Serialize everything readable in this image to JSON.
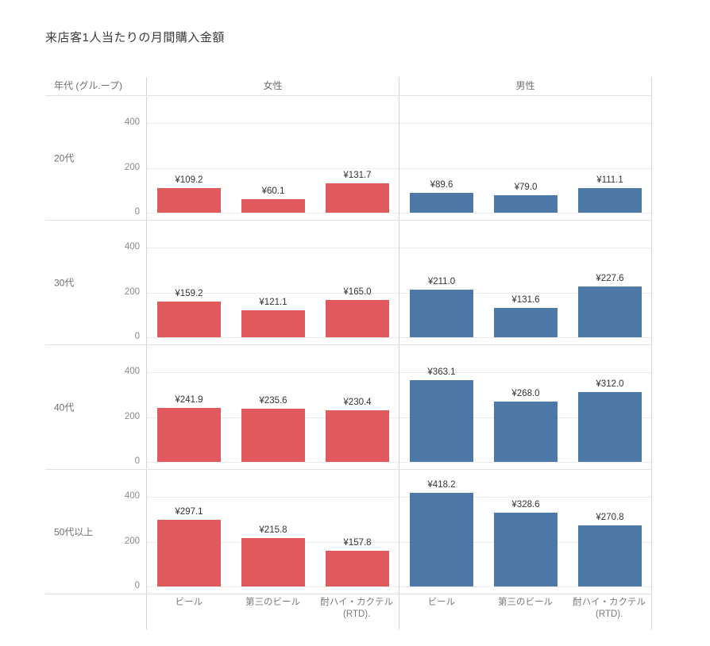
{
  "title": "来店客1人当たりの月間購入金額",
  "header": {
    "row_dimension": "年代 (グル.ープ)",
    "column_groups": [
      "女性",
      "男性"
    ]
  },
  "chart_data": {
    "type": "bar",
    "title": "来店客1人当たりの月間購入金額",
    "facet_rows": [
      "20代",
      "30代",
      "40代",
      "50代以上"
    ],
    "facet_columns": [
      "女性",
      "男性"
    ],
    "categories": [
      "ビール",
      "第三のビール",
      "酎ハイ・カクテル\n(RTD)."
    ],
    "y_ticks": [
      0,
      200,
      400
    ],
    "ylim": [
      0,
      500
    ],
    "grid": true,
    "currency_prefix": "¥",
    "colors": {
      "女性": "#e0595d",
      "男性": "#4e79a7"
    },
    "rows": [
      {
        "group": "20代",
        "panes": [
          {
            "column": "女性",
            "values": [
              109.2,
              60.1,
              131.7
            ],
            "labels": [
              "¥109.2",
              "¥60.1",
              "¥131.7"
            ]
          },
          {
            "column": "男性",
            "values": [
              89.6,
              79.0,
              111.1
            ],
            "labels": [
              "¥89.6",
              "¥79.0",
              "¥111.1"
            ]
          }
        ]
      },
      {
        "group": "30代",
        "panes": [
          {
            "column": "女性",
            "values": [
              159.2,
              121.1,
              165.0
            ],
            "labels": [
              "¥159.2",
              "¥121.1",
              "¥165.0"
            ]
          },
          {
            "column": "男性",
            "values": [
              211.0,
              131.6,
              227.6
            ],
            "labels": [
              "¥211.0",
              "¥131.6",
              "¥227.6"
            ]
          }
        ]
      },
      {
        "group": "40代",
        "panes": [
          {
            "column": "女性",
            "values": [
              241.9,
              235.6,
              230.4
            ],
            "labels": [
              "¥241.9",
              "¥235.6",
              "¥230.4"
            ]
          },
          {
            "column": "男性",
            "values": [
              363.1,
              268.0,
              312.0
            ],
            "labels": [
              "¥363.1",
              "¥268.0",
              "¥312.0"
            ]
          }
        ]
      },
      {
        "group": "50代以上",
        "panes": [
          {
            "column": "女性",
            "values": [
              297.1,
              215.8,
              157.8
            ],
            "labels": [
              "¥297.1",
              "¥215.8",
              "¥157.8"
            ]
          },
          {
            "column": "男性",
            "values": [
              418.2,
              328.6,
              270.8
            ],
            "labels": [
              "¥418.2",
              "¥328.6",
              "¥270.8"
            ]
          }
        ]
      }
    ]
  }
}
